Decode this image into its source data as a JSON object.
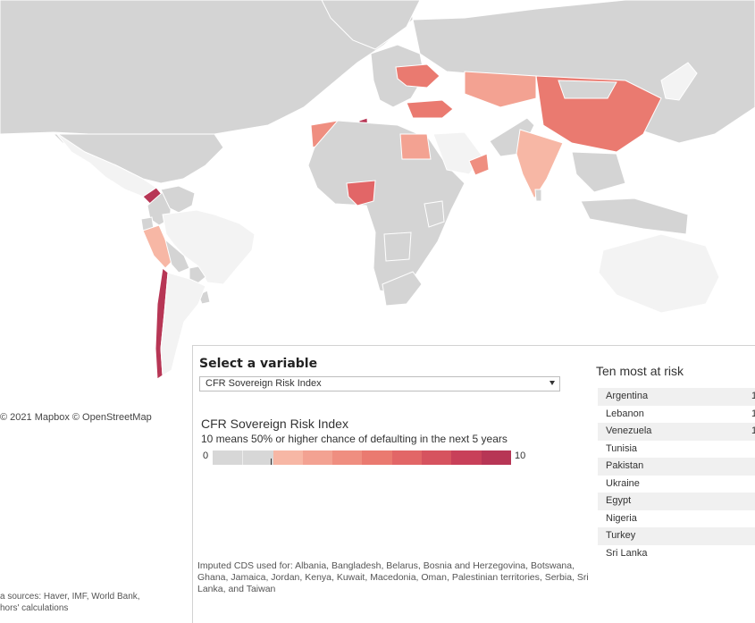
{
  "colors": {
    "no_data": "#f3f3f3",
    "grey": "#d4d4d4",
    "border": "#ffffff",
    "scale": [
      "#d7d7d7",
      "#d7d7d7",
      "#f7b7a5",
      "#f3a292",
      "#ef8e80",
      "#ea7a70",
      "#e26667",
      "#d6535f",
      "#c84059",
      "#b73655"
    ]
  },
  "attribution": "© 2021 Mapbox  © OpenStreetMap",
  "sources": [
    "a sources: Haver, IMF, World Bank,",
    "hors' calculations"
  ],
  "panel": {
    "select_title": "Select a variable",
    "select_value": "CFR Sovereign Risk Index",
    "legend_title": "CFR Sovereign Risk Index",
    "legend_subtitle": "10 means 50% or higher chance of defaulting in the next 5 years",
    "scale_min": "0",
    "scale_max": "10",
    "imputed_note": "Imputed CDS used for: Albania, Bangladesh, Belarus, Bosnia and Herzegovina, Botswana, Ghana, Jamaica, Jordan, Kenya, Kuwait, Macedonia, Oman, Palestinian territories, Serbia,  Sri Lanka, and Taiwan"
  },
  "risk": {
    "title": "Ten most at risk",
    "rows": [
      {
        "country": "Argentina",
        "value": "1"
      },
      {
        "country": "Lebanon",
        "value": "1"
      },
      {
        "country": "Venezuela",
        "value": "1"
      },
      {
        "country": "Tunisia",
        "value": ""
      },
      {
        "country": "Pakistan",
        "value": ""
      },
      {
        "country": "Ukraine",
        "value": ""
      },
      {
        "country": "Egypt",
        "value": ""
      },
      {
        "country": "Nigeria",
        "value": ""
      },
      {
        "country": "Turkey",
        "value": ""
      },
      {
        "country": "Sri Lanka",
        "value": ""
      }
    ]
  },
  "map": {
    "countries": [
      {
        "name": "Canada",
        "level": "grey"
      },
      {
        "name": "United States",
        "level": "grey"
      },
      {
        "name": "Mexico",
        "level": "grey"
      },
      {
        "name": "Central America",
        "level": "no_data"
      },
      {
        "name": "Venezuela",
        "level": 9
      },
      {
        "name": "Colombia",
        "level": "grey"
      },
      {
        "name": "Ecuador",
        "level": "grey"
      },
      {
        "name": "Peru",
        "level": "grey"
      },
      {
        "name": "Brazil",
        "level": 2
      },
      {
        "name": "Bolivia",
        "level": "no_data"
      },
      {
        "name": "Paraguay",
        "level": "grey"
      },
      {
        "name": "Uruguay",
        "level": "grey"
      },
      {
        "name": "Chile",
        "level": "grey"
      },
      {
        "name": "Argentina",
        "level": 9
      },
      {
        "name": "Greenland",
        "level": "no_data"
      },
      {
        "name": "Russia",
        "level": "grey"
      },
      {
        "name": "Europe",
        "level": "grey"
      },
      {
        "name": "Ukraine",
        "level": 5
      },
      {
        "name": "Turkey",
        "level": 5
      },
      {
        "name": "Tunisia",
        "level": 9
      },
      {
        "name": "Egypt",
        "level": 4
      },
      {
        "name": "Saudi Arabia",
        "level": "grey"
      },
      {
        "name": "Oman",
        "level": 3
      },
      {
        "name": "Pakistan",
        "level": 6
      },
      {
        "name": "India",
        "level": "grey"
      },
      {
        "name": "Kazakhstan",
        "level": "grey"
      },
      {
        "name": "China",
        "level": "grey"
      },
      {
        "name": "Mongolia",
        "level": "no_data"
      },
      {
        "name": "Nigeria",
        "level": 4
      },
      {
        "name": "Kenya",
        "level": 3
      },
      {
        "name": "Angola",
        "level": "grey"
      },
      {
        "name": "South Africa",
        "level": 2
      },
      {
        "name": "Morocco",
        "level": "grey"
      },
      {
        "name": "Sri Lanka",
        "level": 5
      },
      {
        "name": "Japan",
        "level": "grey"
      },
      {
        "name": "Southeast Asia",
        "level": "grey"
      },
      {
        "name": "Indonesia",
        "level": "grey"
      },
      {
        "name": "Africa",
        "level": "no_data"
      },
      {
        "name": "Australia",
        "level": "no_data"
      }
    ]
  }
}
